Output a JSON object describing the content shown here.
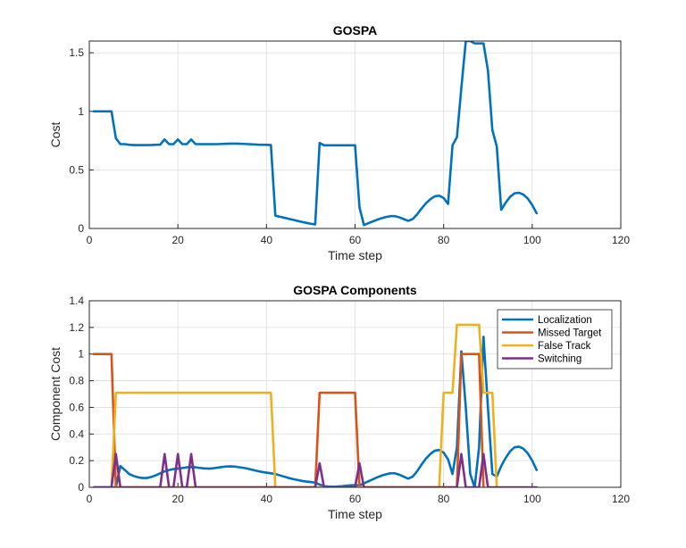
{
  "chart_data": [
    {
      "type": "line",
      "title": "GOSPA",
      "xlabel": "Time step",
      "ylabel": "Cost",
      "xlim": [
        0,
        120
      ],
      "ylim": [
        0,
        1.6
      ],
      "xticks": [
        "0",
        "20",
        "40",
        "60",
        "80",
        "100",
        "120"
      ],
      "yticks": [
        "0",
        "0.5",
        "1",
        "1.5"
      ],
      "grid": true,
      "series": [
        {
          "color": "#0072BD",
          "x": [
            1,
            2,
            3,
            4,
            5,
            6,
            7,
            8,
            9,
            10,
            11,
            12,
            13,
            14,
            15,
            16,
            17,
            18,
            19,
            20,
            21,
            22,
            23,
            24,
            25,
            26,
            27,
            28,
            29,
            30,
            31,
            32,
            33,
            34,
            35,
            36,
            37,
            38,
            39,
            40,
            41,
            42,
            43,
            44,
            45,
            46,
            47,
            48,
            49,
            50,
            51,
            52,
            53,
            54,
            55,
            56,
            57,
            58,
            59,
            60,
            61,
            62,
            63,
            64,
            65,
            66,
            67,
            68,
            69,
            70,
            71,
            72,
            73,
            74,
            75,
            76,
            77,
            78,
            79,
            80,
            81,
            82,
            83,
            84,
            85,
            86,
            87,
            88,
            89,
            90,
            91,
            92,
            93,
            94,
            95,
            96,
            97,
            98,
            99,
            100,
            101
          ],
          "y": [
            1,
            1,
            1,
            1,
            1,
            0.77,
            0.72,
            0.72,
            0.715,
            0.712,
            0.712,
            0.712,
            0.712,
            0.713,
            0.715,
            0.716,
            0.76,
            0.72,
            0.72,
            0.76,
            0.72,
            0.72,
            0.76,
            0.72,
            0.72,
            0.72,
            0.72,
            0.72,
            0.72,
            0.722,
            0.723,
            0.724,
            0.724,
            0.723,
            0.722,
            0.72,
            0.718,
            0.716,
            0.715,
            0.714,
            0.713,
            0.11,
            0.1,
            0.092,
            0.083,
            0.074,
            0.065,
            0.056,
            0.048,
            0.04,
            0.035,
            0.73,
            0.71,
            0.71,
            0.71,
            0.71,
            0.71,
            0.71,
            0.71,
            0.71,
            0.18,
            0.03,
            0.045,
            0.06,
            0.075,
            0.088,
            0.098,
            0.105,
            0.105,
            0.095,
            0.08,
            0.065,
            0.08,
            0.12,
            0.17,
            0.215,
            0.25,
            0.275,
            0.28,
            0.26,
            0.21,
            0.71,
            0.78,
            1.2,
            1.6,
            1.6,
            1.58,
            1.58,
            1.58,
            1.35,
            0.84,
            0.7,
            0.16,
            0.22,
            0.27,
            0.3,
            0.305,
            0.29,
            0.255,
            0.2,
            0.13
          ]
        }
      ]
    },
    {
      "type": "line",
      "title": "GOSPA Components",
      "xlabel": "Time step",
      "ylabel": "Component Cost",
      "xlim": [
        0,
        120
      ],
      "ylim": [
        0,
        1.4
      ],
      "xticks": [
        "0",
        "20",
        "40",
        "60",
        "80",
        "100",
        "120"
      ],
      "yticks": [
        "0",
        "0.2",
        "0.4",
        "0.6",
        "0.8",
        "1",
        "1.2",
        "1.4"
      ],
      "grid": true,
      "legend": "top-right",
      "series": [
        {
          "name": "Localization",
          "color": "#0072BD",
          "x": [
            1,
            2,
            3,
            4,
            5,
            6,
            7,
            8,
            9,
            10,
            11,
            12,
            13,
            14,
            15,
            16,
            17,
            18,
            19,
            20,
            21,
            22,
            23,
            24,
            25,
            26,
            27,
            28,
            29,
            30,
            31,
            32,
            33,
            34,
            35,
            36,
            37,
            38,
            39,
            40,
            41,
            42,
            43,
            44,
            45,
            46,
            47,
            48,
            49,
            50,
            51,
            52,
            53,
            54,
            55,
            56,
            57,
            58,
            59,
            60,
            61,
            62,
            63,
            64,
            65,
            66,
            67,
            68,
            69,
            70,
            71,
            72,
            73,
            74,
            75,
            76,
            77,
            78,
            79,
            80,
            81,
            82,
            83,
            84,
            85,
            86,
            87,
            88,
            89,
            90,
            91,
            92,
            93,
            94,
            95,
            96,
            97,
            98,
            99,
            100,
            101
          ],
          "y": [
            0,
            0,
            0,
            0,
            0,
            0,
            0.16,
            0.13,
            0.1,
            0.085,
            0.075,
            0.07,
            0.07,
            0.078,
            0.09,
            0.105,
            0.12,
            0.13,
            0.137,
            0.14,
            0.145,
            0.15,
            0.152,
            0.15,
            0.145,
            0.142,
            0.14,
            0.143,
            0.148,
            0.153,
            0.156,
            0.157,
            0.155,
            0.15,
            0.145,
            0.138,
            0.13,
            0.122,
            0.115,
            0.11,
            0.105,
            0.1,
            0.09,
            0.08,
            0.07,
            0.062,
            0.055,
            0.048,
            0.043,
            0.04,
            0.035,
            0.02,
            0.008,
            0.006,
            0.005,
            0.006,
            0.008,
            0.012,
            0.015,
            0.016,
            0.015,
            0.03,
            0.045,
            0.06,
            0.075,
            0.088,
            0.098,
            0.105,
            0.105,
            0.095,
            0.08,
            0.065,
            0.08,
            0.12,
            0.17,
            0.215,
            0.25,
            0.275,
            0.28,
            0.26,
            0.21,
            0.1,
            0.3,
            1.02,
            0.6,
            0.1,
            0,
            0.3,
            1.13,
            0.6,
            0.1,
            0.08,
            0.16,
            0.22,
            0.27,
            0.3,
            0.305,
            0.29,
            0.255,
            0.2,
            0.13
          ]
        },
        {
          "name": "Missed Target",
          "color": "#D95319",
          "x": [
            1,
            5,
            6,
            51,
            52,
            60,
            61,
            83,
            84,
            88,
            89
          ],
          "y": [
            1,
            1,
            0,
            0,
            0.71,
            0.71,
            0,
            0,
            1,
            1,
            0
          ]
        },
        {
          "name": "False Track",
          "color": "#EDB120",
          "x": [
            5,
            6,
            41,
            42,
            79,
            80,
            82,
            83,
            88,
            89,
            91,
            92
          ],
          "y": [
            0,
            0.71,
            0.71,
            0,
            0,
            0.71,
            0.71,
            1.22,
            1.22,
            0.71,
            0.71,
            0
          ]
        },
        {
          "name": "Switching",
          "color": "#7E2F8E",
          "x": [
            1,
            5,
            6,
            7,
            16,
            17,
            18,
            19,
            20,
            21,
            22,
            23,
            24,
            51,
            52,
            53,
            60,
            61,
            62,
            83,
            84,
            85,
            88,
            89,
            90,
            101
          ],
          "y": [
            0,
            0,
            0.25,
            0,
            0,
            0.25,
            0,
            0,
            0.25,
            0,
            0,
            0.25,
            0,
            0,
            0.18,
            0,
            0,
            0.18,
            0,
            0,
            0.25,
            0,
            0,
            0.25,
            0,
            0
          ]
        }
      ]
    }
  ]
}
